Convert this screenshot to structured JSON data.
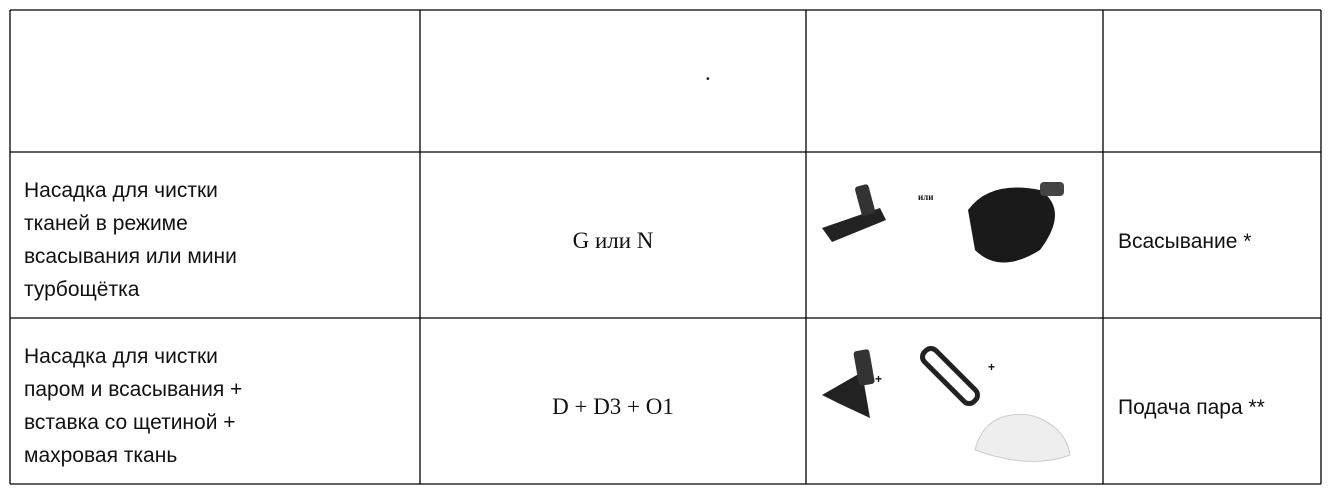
{
  "table": {
    "header": [
      "",
      ".",
      "",
      ""
    ],
    "rows": [
      {
        "name_lines": [
          "Насадка для чистки",
          "тканей в режиме",
          "всасывания или мини",
          "турбощётка"
        ],
        "code": "G или N",
        "image_connectors": [
          "или"
        ],
        "mode": "Всасывание *"
      },
      {
        "name_lines": [
          "Насадка для чистки",
          "паром и всасывания +",
          "вставка со щетиной +",
          "махровая ткань"
        ],
        "code": "D + D3 + O1",
        "image_connectors": [
          "+",
          "+"
        ],
        "mode": "Подача пара **"
      }
    ]
  }
}
